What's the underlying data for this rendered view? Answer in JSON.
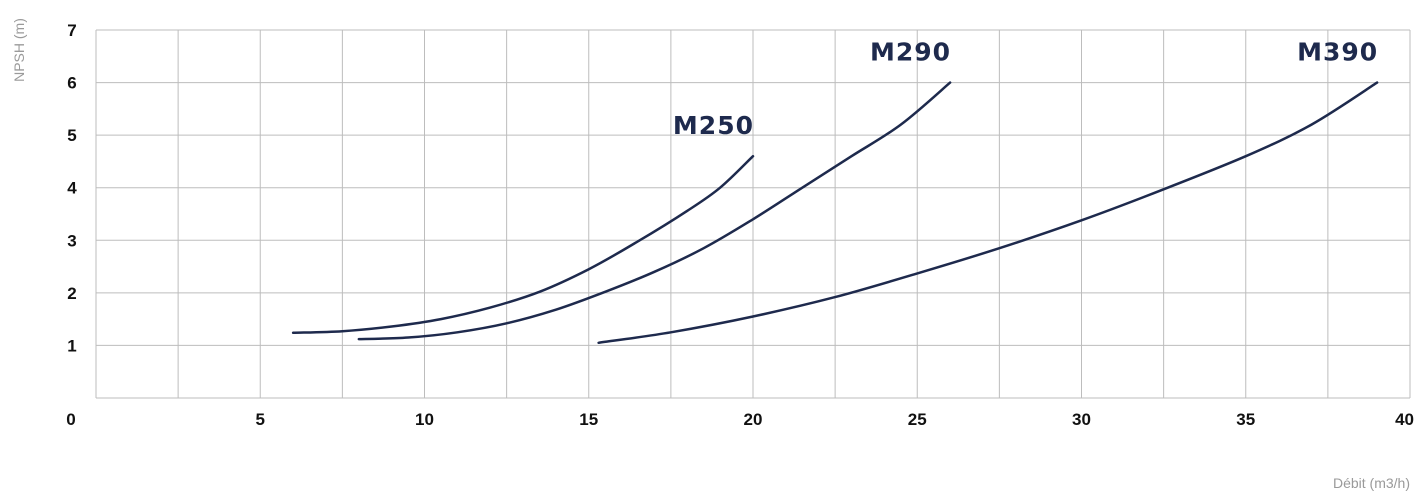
{
  "chart_data": {
    "type": "line",
    "title": "",
    "xlabel": "Débit (m3/h)",
    "ylabel": "NPSH (m)",
    "xlim": [
      0,
      40
    ],
    "ylim": [
      0,
      7
    ],
    "x_ticks": [
      "0",
      "5",
      "10",
      "15",
      "20",
      "25",
      "30",
      "35",
      "40"
    ],
    "y_ticks": [
      "1",
      "2",
      "3",
      "4",
      "5",
      "6",
      "7"
    ],
    "grid": true,
    "line_color": "#1e2a4d",
    "series": [
      {
        "name": "M250",
        "points": [
          [
            6,
            1.24
          ],
          [
            7.5,
            1.27
          ],
          [
            9,
            1.36
          ],
          [
            10.5,
            1.5
          ],
          [
            12,
            1.72
          ],
          [
            13.5,
            2.02
          ],
          [
            15,
            2.45
          ],
          [
            16.5,
            2.98
          ],
          [
            18,
            3.56
          ],
          [
            19,
            4.0
          ],
          [
            20,
            4.6
          ]
        ]
      },
      {
        "name": "M290",
        "points": [
          [
            8,
            1.12
          ],
          [
            9.5,
            1.15
          ],
          [
            11,
            1.25
          ],
          [
            12.5,
            1.42
          ],
          [
            14,
            1.68
          ],
          [
            15.5,
            2.02
          ],
          [
            17,
            2.4
          ],
          [
            18.5,
            2.85
          ],
          [
            20,
            3.4
          ],
          [
            21.5,
            4.0
          ],
          [
            23,
            4.6
          ],
          [
            24.5,
            5.2
          ],
          [
            26,
            6.0
          ]
        ]
      },
      {
        "name": "M390",
        "points": [
          [
            15.3,
            1.05
          ],
          [
            17.5,
            1.25
          ],
          [
            20,
            1.55
          ],
          [
            22.5,
            1.92
          ],
          [
            25,
            2.37
          ],
          [
            27.5,
            2.85
          ],
          [
            30,
            3.38
          ],
          [
            32.5,
            3.97
          ],
          [
            35,
            4.6
          ],
          [
            37,
            5.2
          ],
          [
            39,
            6.0
          ]
        ]
      }
    ]
  }
}
